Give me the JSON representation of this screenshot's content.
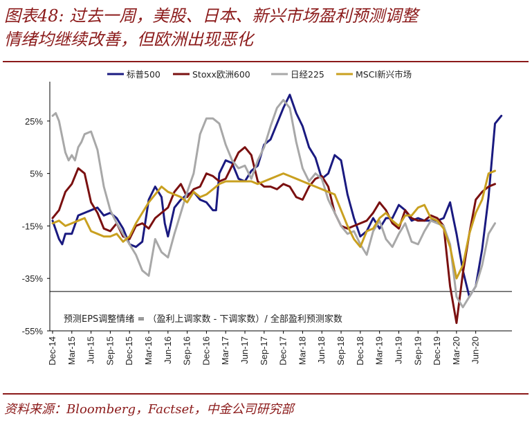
{
  "header": {
    "title_line1": "图表48: 过去一周，美股、日本、新兴市场盈利预测调整",
    "title_line2": "情绪均继续改善，但欧洲出现恶化"
  },
  "footer": {
    "source": "资料来源：Bloomberg，Factset，中金公司研究部"
  },
  "chart_data": {
    "type": "line",
    "annotation": "预测EPS调整情绪 = （盈利上调家数 - 下调家数）/ 全部盈利预测家数",
    "y_ticks": [
      "25%",
      "5%",
      "-15%",
      "-35%",
      "-55%"
    ],
    "y_tick_values": [
      25,
      5,
      -15,
      -35,
      -55
    ],
    "ylim": [
      -55,
      40
    ],
    "x_ticks": [
      "Dec-14",
      "Mar-15",
      "Jun-15",
      "Sep-15",
      "Dec-15",
      "Mar-16",
      "Jun-16",
      "Sep-16",
      "Dec-16",
      "Mar-17",
      "Jun-17",
      "Sep-17",
      "Dec-17",
      "Mar-18",
      "Jun-18",
      "Sep-18",
      "Dec-18",
      "Mar-19",
      "Jun-19",
      "Sep-19",
      "Dec-19",
      "Mar-20",
      "Jun-20"
    ],
    "x_range_months": [
      0,
      71
    ],
    "legend_position": "top",
    "series": [
      {
        "name": "标普500",
        "color": "#1a1a80",
        "points": [
          [
            0,
            -13
          ],
          [
            1,
            -20
          ],
          [
            1.5,
            -22
          ],
          [
            2,
            -18
          ],
          [
            3,
            -18
          ],
          [
            4,
            -11
          ],
          [
            5,
            -10
          ],
          [
            6,
            -9
          ],
          [
            7,
            -8
          ],
          [
            8,
            -11
          ],
          [
            9,
            -10
          ],
          [
            10,
            -12
          ],
          [
            11,
            -16
          ],
          [
            12,
            -22
          ],
          [
            13,
            -23
          ],
          [
            14,
            -21
          ],
          [
            15,
            -5
          ],
          [
            16,
            0
          ],
          [
            17,
            -4
          ],
          [
            17.5,
            -14
          ],
          [
            18,
            -19
          ],
          [
            19,
            -8
          ],
          [
            20,
            -5
          ],
          [
            21,
            -3
          ],
          [
            22,
            -2
          ],
          [
            23,
            -5
          ],
          [
            24,
            -6
          ],
          [
            25,
            -9
          ],
          [
            25.5,
            -9
          ],
          [
            26,
            5
          ],
          [
            27,
            10
          ],
          [
            28,
            9
          ],
          [
            29,
            3
          ],
          [
            30,
            2
          ],
          [
            31,
            6
          ],
          [
            32,
            8
          ],
          [
            33,
            16
          ],
          [
            34,
            18
          ],
          [
            35,
            24
          ],
          [
            36,
            30
          ],
          [
            37,
            35
          ],
          [
            38,
            28
          ],
          [
            39,
            23
          ],
          [
            40,
            15
          ],
          [
            41,
            11
          ],
          [
            42,
            3
          ],
          [
            43,
            5
          ],
          [
            44,
            12
          ],
          [
            45,
            10
          ],
          [
            46,
            -3
          ],
          [
            47,
            -12
          ],
          [
            48,
            -19
          ],
          [
            49,
            -17
          ],
          [
            50,
            -12
          ],
          [
            51,
            -16
          ],
          [
            52,
            -12
          ],
          [
            53,
            -12
          ],
          [
            54,
            -7
          ],
          [
            55,
            -9
          ],
          [
            56,
            -13
          ],
          [
            57,
            -12
          ],
          [
            58,
            -13
          ],
          [
            59,
            -13
          ],
          [
            60,
            -13
          ],
          [
            61,
            -12
          ],
          [
            62,
            -6
          ],
          [
            62.5,
            -12
          ],
          [
            63,
            -18
          ],
          [
            64,
            -32
          ],
          [
            65,
            -42
          ],
          [
            66,
            -38
          ],
          [
            67,
            -24
          ],
          [
            68,
            -4
          ],
          [
            69,
            24
          ],
          [
            70,
            27
          ]
        ]
      },
      {
        "name": "Stoxx欧洲600",
        "color": "#7a1010",
        "points": [
          [
            0,
            -12
          ],
          [
            1,
            -9
          ],
          [
            2,
            -2
          ],
          [
            3,
            1
          ],
          [
            4,
            7
          ],
          [
            5,
            5
          ],
          [
            6,
            -6
          ],
          [
            7,
            -10
          ],
          [
            8,
            -16
          ],
          [
            9,
            -17
          ],
          [
            10,
            -14
          ],
          [
            11,
            -19
          ],
          [
            12,
            -20
          ],
          [
            13,
            -15
          ],
          [
            14,
            -14
          ],
          [
            15,
            -16
          ],
          [
            16,
            -12
          ],
          [
            17,
            -10
          ],
          [
            18,
            -8
          ],
          [
            19,
            -2
          ],
          [
            20,
            1
          ],
          [
            21,
            -4
          ],
          [
            22,
            -1
          ],
          [
            23,
            0
          ],
          [
            24,
            5
          ],
          [
            25,
            4
          ],
          [
            26,
            2
          ],
          [
            27,
            3
          ],
          [
            28,
            8
          ],
          [
            29,
            13
          ],
          [
            30,
            15
          ],
          [
            31,
            12
          ],
          [
            32,
            2
          ],
          [
            33,
            0
          ],
          [
            34,
            0
          ],
          [
            35,
            -1
          ],
          [
            36,
            1
          ],
          [
            37,
            0
          ],
          [
            38,
            -4
          ],
          [
            39,
            -5
          ],
          [
            40,
            0
          ],
          [
            41,
            3
          ],
          [
            42,
            4
          ],
          [
            43,
            0
          ],
          [
            44,
            -10
          ],
          [
            45,
            -15
          ],
          [
            46,
            -16
          ],
          [
            47,
            -15
          ],
          [
            48,
            -14
          ],
          [
            49,
            -13
          ],
          [
            50,
            -10
          ],
          [
            51,
            -6
          ],
          [
            52,
            -9
          ],
          [
            53,
            -14
          ],
          [
            54,
            -16
          ],
          [
            55,
            -9
          ],
          [
            56,
            -12
          ],
          [
            57,
            -13
          ],
          [
            58,
            -13
          ],
          [
            59,
            -11
          ],
          [
            60,
            -12
          ],
          [
            61,
            -15
          ],
          [
            62,
            -38
          ],
          [
            63,
            -52
          ],
          [
            64,
            -33
          ],
          [
            65,
            -18
          ],
          [
            66,
            -5
          ],
          [
            67,
            -2
          ],
          [
            68,
            0
          ],
          [
            69,
            1
          ]
        ]
      },
      {
        "name": "日经225",
        "color": "#a8a8a8",
        "points": [
          [
            0,
            27
          ],
          [
            0.5,
            28
          ],
          [
            1,
            25
          ],
          [
            1.5,
            19
          ],
          [
            2,
            13
          ],
          [
            2.5,
            10
          ],
          [
            3,
            12
          ],
          [
            3.5,
            10
          ],
          [
            4,
            15
          ],
          [
            4.5,
            17
          ],
          [
            5,
            20
          ],
          [
            6,
            21
          ],
          [
            7,
            14
          ],
          [
            8,
            0
          ],
          [
            9,
            -9
          ],
          [
            10,
            -14
          ],
          [
            11,
            -18
          ],
          [
            12,
            -22
          ],
          [
            13,
            -26
          ],
          [
            14,
            -32
          ],
          [
            15,
            -34
          ],
          [
            16,
            -20
          ],
          [
            17,
            -25
          ],
          [
            18,
            -27
          ],
          [
            19,
            -18
          ],
          [
            20,
            -10
          ],
          [
            21,
            -2
          ],
          [
            22,
            5
          ],
          [
            23,
            20
          ],
          [
            24,
            26
          ],
          [
            25,
            26
          ],
          [
            26,
            24
          ],
          [
            27,
            16
          ],
          [
            28,
            10
          ],
          [
            29,
            7
          ],
          [
            30,
            8
          ],
          [
            31,
            3
          ],
          [
            32,
            10
          ],
          [
            33,
            15
          ],
          [
            34,
            23
          ],
          [
            35,
            30
          ],
          [
            36,
            33
          ],
          [
            37,
            30
          ],
          [
            38,
            17
          ],
          [
            39,
            7
          ],
          [
            40,
            2
          ],
          [
            41,
            5
          ],
          [
            42,
            3
          ],
          [
            43,
            -5
          ],
          [
            44,
            -10
          ],
          [
            45,
            -15
          ],
          [
            46,
            -18
          ],
          [
            47,
            -17
          ],
          [
            48,
            -22
          ],
          [
            49,
            -26
          ],
          [
            50,
            -17
          ],
          [
            51,
            -13
          ],
          [
            52,
            -20
          ],
          [
            53,
            -23
          ],
          [
            54,
            -18
          ],
          [
            55,
            -14
          ],
          [
            56,
            -21
          ],
          [
            57,
            -22
          ],
          [
            58,
            -17
          ],
          [
            59,
            -13
          ],
          [
            60,
            -14
          ],
          [
            61,
            -15
          ],
          [
            62,
            -22
          ],
          [
            63,
            -42
          ],
          [
            64,
            -46
          ],
          [
            65,
            -42
          ],
          [
            66,
            -38
          ],
          [
            67,
            -30
          ],
          [
            68,
            -18
          ],
          [
            69,
            -14
          ]
        ]
      },
      {
        "name": "MSCI新兴市场",
        "color": "#c9a020",
        "points": [
          [
            0,
            -14
          ],
          [
            1,
            -13
          ],
          [
            2,
            -15
          ],
          [
            3,
            -14
          ],
          [
            4,
            -13
          ],
          [
            5,
            -12
          ],
          [
            6,
            -17
          ],
          [
            7,
            -18
          ],
          [
            8,
            -19
          ],
          [
            9,
            -19
          ],
          [
            10,
            -18
          ],
          [
            11,
            -21
          ],
          [
            12,
            -19
          ],
          [
            13,
            -14
          ],
          [
            14,
            -10
          ],
          [
            15,
            -6
          ],
          [
            16,
            -3
          ],
          [
            17,
            0
          ],
          [
            18,
            -2
          ],
          [
            19,
            -3
          ],
          [
            20,
            -4
          ],
          [
            21,
            -6
          ],
          [
            22,
            -2
          ],
          [
            23,
            -4
          ],
          [
            24,
            -3
          ],
          [
            25,
            -1
          ],
          [
            26,
            1
          ],
          [
            27,
            2
          ],
          [
            28,
            2
          ],
          [
            29,
            2
          ],
          [
            30,
            2
          ],
          [
            31,
            2
          ],
          [
            32,
            1
          ],
          [
            33,
            2
          ],
          [
            34,
            3
          ],
          [
            35,
            4
          ],
          [
            36,
            5
          ],
          [
            37,
            4
          ],
          [
            38,
            3
          ],
          [
            39,
            2
          ],
          [
            40,
            1
          ],
          [
            41,
            0
          ],
          [
            42,
            -1
          ],
          [
            43,
            -2
          ],
          [
            44,
            -3
          ],
          [
            45,
            -9
          ],
          [
            46,
            -15
          ],
          [
            47,
            -20
          ],
          [
            48,
            -23
          ],
          [
            49,
            -17
          ],
          [
            50,
            -16
          ],
          [
            51,
            -12
          ],
          [
            52,
            -10
          ],
          [
            53,
            -13
          ],
          [
            54,
            -15
          ],
          [
            55,
            -11
          ],
          [
            56,
            -11
          ],
          [
            57,
            -8
          ],
          [
            58,
            -7
          ],
          [
            59,
            -12
          ],
          [
            60,
            -13
          ],
          [
            61,
            -16
          ],
          [
            62,
            -23
          ],
          [
            63,
            -35
          ],
          [
            64,
            -30
          ],
          [
            65,
            -18
          ],
          [
            66,
            -10
          ],
          [
            67,
            -5
          ],
          [
            68,
            5
          ],
          [
            69,
            6
          ]
        ]
      }
    ]
  }
}
